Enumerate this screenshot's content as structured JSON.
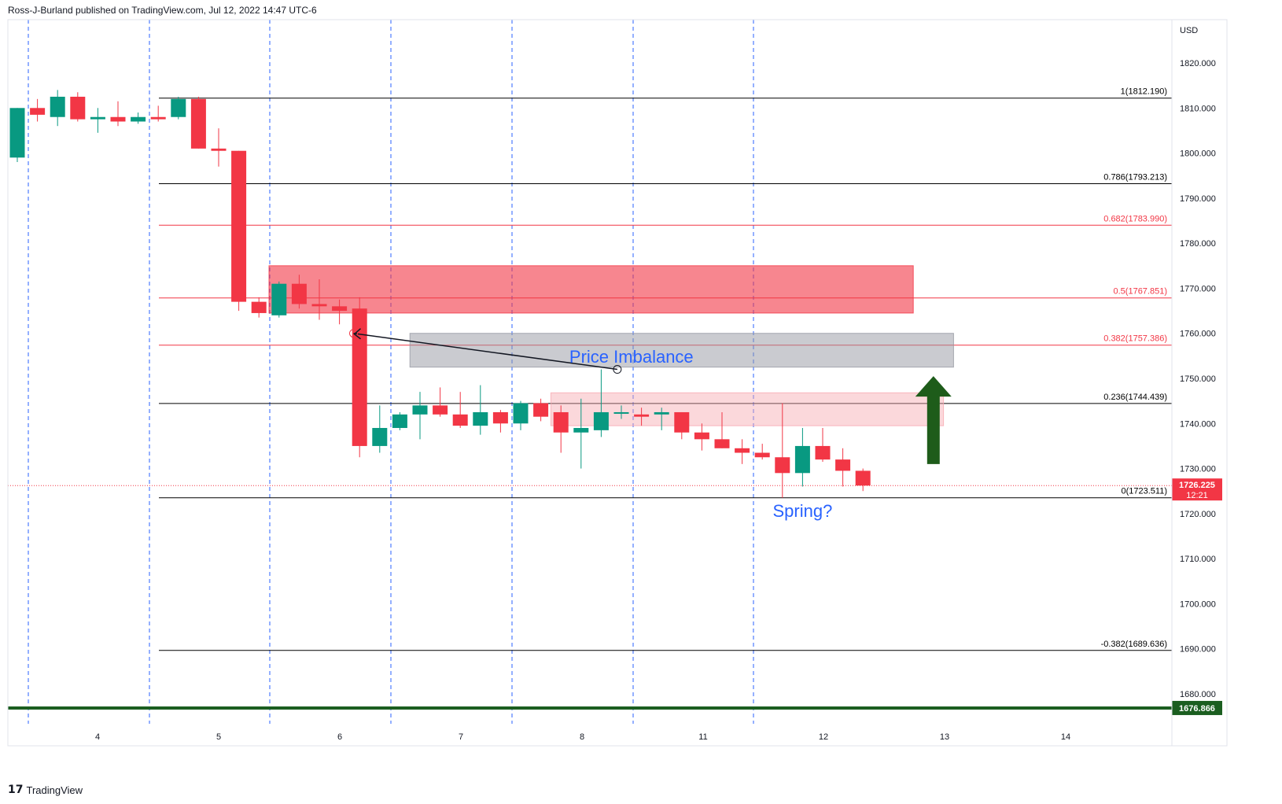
{
  "header": {
    "published": "Ross-J-Burland published on TradingView.com, Jul 12, 2022 14:47 UTC-6"
  },
  "footer": {
    "brand": "TradingView"
  },
  "colors": {
    "up": "#089981",
    "down": "#f23645",
    "grid": "#2962ff",
    "fib_black": "#000000",
    "fib_red": "#f23645",
    "support": "#1b5e20",
    "arrow": "#1e5c1a",
    "annotation_text": "#2962ff"
  },
  "chart_data": {
    "type": "candlestick",
    "title": "",
    "currency_label": "USD",
    "ylim": [
      1670,
      1830
    ],
    "y_ticks": [
      1680,
      1690,
      1700,
      1710,
      1720,
      1730,
      1740,
      1750,
      1760,
      1770,
      1780,
      1790,
      1800,
      1810,
      1820
    ],
    "x_ticks": [
      "4",
      "5",
      "6",
      "7",
      "8",
      "11",
      "12",
      "13",
      "14"
    ],
    "candles": [
      {
        "o": 1799.0,
        "h": 1810.0,
        "l": 1798.0,
        "c": 1810.0
      },
      {
        "o": 1810.0,
        "h": 1812.0,
        "l": 1807.0,
        "c": 1808.5
      },
      {
        "o": 1808.0,
        "h": 1814.0,
        "l": 1806.0,
        "c": 1812.5
      },
      {
        "o": 1812.5,
        "h": 1813.5,
        "l": 1807.0,
        "c": 1807.5
      },
      {
        "o": 1807.5,
        "h": 1810.0,
        "l": 1804.5,
        "c": 1808.0
      },
      {
        "o": 1808.0,
        "h": 1811.5,
        "l": 1806.0,
        "c": 1807.0
      },
      {
        "o": 1807.0,
        "h": 1809.0,
        "l": 1806.5,
        "c": 1808.0
      },
      {
        "o": 1808.0,
        "h": 1810.5,
        "l": 1807.0,
        "c": 1807.5
      },
      {
        "o": 1808.0,
        "h": 1812.5,
        "l": 1807.5,
        "c": 1812.0
      },
      {
        "o": 1812.0,
        "h": 1812.5,
        "l": 1801.0,
        "c": 1801.0
      },
      {
        "o": 1801.0,
        "h": 1805.5,
        "l": 1797.0,
        "c": 1800.5
      },
      {
        "o": 1800.5,
        "h": 1800.5,
        "l": 1765.0,
        "c": 1767.0
      },
      {
        "o": 1767.0,
        "h": 1768.0,
        "l": 1763.5,
        "c": 1764.5
      },
      {
        "o": 1764.0,
        "h": 1771.5,
        "l": 1763.5,
        "c": 1771.0
      },
      {
        "o": 1771.0,
        "h": 1773.0,
        "l": 1765.5,
        "c": 1766.5
      },
      {
        "o": 1766.5,
        "h": 1772.0,
        "l": 1763.0,
        "c": 1766.0
      },
      {
        "o": 1766.0,
        "h": 1767.5,
        "l": 1762.0,
        "c": 1765.0
      },
      {
        "o": 1765.5,
        "h": 1768.0,
        "l": 1732.5,
        "c": 1735.0
      },
      {
        "o": 1735.0,
        "h": 1744.0,
        "l": 1733.5,
        "c": 1739.0
      },
      {
        "o": 1739.0,
        "h": 1742.5,
        "l": 1738.5,
        "c": 1742.0
      },
      {
        "o": 1742.0,
        "h": 1747.0,
        "l": 1736.5,
        "c": 1744.0
      },
      {
        "o": 1744.0,
        "h": 1748.0,
        "l": 1741.5,
        "c": 1742.0
      },
      {
        "o": 1742.0,
        "h": 1747.0,
        "l": 1739.0,
        "c": 1739.5
      },
      {
        "o": 1739.5,
        "h": 1748.5,
        "l": 1737.5,
        "c": 1742.5
      },
      {
        "o": 1742.5,
        "h": 1743.0,
        "l": 1738.0,
        "c": 1740.0
      },
      {
        "o": 1740.0,
        "h": 1745.0,
        "l": 1738.5,
        "c": 1744.5
      },
      {
        "o": 1744.5,
        "h": 1745.5,
        "l": 1740.5,
        "c": 1741.5
      },
      {
        "o": 1742.5,
        "h": 1744.0,
        "l": 1733.5,
        "c": 1738.0
      },
      {
        "o": 1738.0,
        "h": 1745.5,
        "l": 1730.0,
        "c": 1739.0
      },
      {
        "o": 1738.5,
        "h": 1752.0,
        "l": 1737.0,
        "c": 1742.5
      },
      {
        "o": 1742.5,
        "h": 1744.0,
        "l": 1741.0,
        "c": 1742.5
      },
      {
        "o": 1742.0,
        "h": 1743.5,
        "l": 1739.5,
        "c": 1741.5
      },
      {
        "o": 1742.0,
        "h": 1743.5,
        "l": 1738.5,
        "c": 1742.5
      },
      {
        "o": 1742.5,
        "h": 1742.5,
        "l": 1736.5,
        "c": 1738.0
      },
      {
        "o": 1738.0,
        "h": 1740.0,
        "l": 1734.0,
        "c": 1736.5
      },
      {
        "o": 1736.5,
        "h": 1742.5,
        "l": 1734.5,
        "c": 1734.5
      },
      {
        "o": 1734.5,
        "h": 1736.5,
        "l": 1731.0,
        "c": 1733.5
      },
      {
        "o": 1733.5,
        "h": 1735.5,
        "l": 1732.0,
        "c": 1732.5
      },
      {
        "o": 1732.5,
        "h": 1744.5,
        "l": 1723.5,
        "c": 1729.0
      },
      {
        "o": 1729.0,
        "h": 1739.0,
        "l": 1726.0,
        "c": 1735.0
      },
      {
        "o": 1735.0,
        "h": 1739.0,
        "l": 1731.5,
        "c": 1732.0
      },
      {
        "o": 1732.0,
        "h": 1734.5,
        "l": 1726.0,
        "c": 1729.5
      },
      {
        "o": 1729.5,
        "h": 1730.0,
        "l": 1725.0,
        "c": 1726.225
      }
    ],
    "fib_levels": [
      {
        "ratio": "1",
        "value": 1812.19,
        "label": "1(1812.190)",
        "color": "black"
      },
      {
        "ratio": "0.786",
        "value": 1793.213,
        "label": "0.786(1793.213)",
        "color": "black"
      },
      {
        "ratio": "0.682",
        "value": 1783.99,
        "label": "0.682(1783.990)",
        "color": "red"
      },
      {
        "ratio": "0.5",
        "value": 1767.851,
        "label": "0.5(1767.851)",
        "color": "red"
      },
      {
        "ratio": "0.382",
        "value": 1757.386,
        "label": "0.382(1757.386)",
        "color": "red"
      },
      {
        "ratio": "0.236",
        "value": 1744.439,
        "label": "0.236(1744.439)",
        "color": "black"
      },
      {
        "ratio": "0",
        "value": 1723.511,
        "label": "0(1723.511)",
        "color": "black"
      },
      {
        "ratio": "-0.382",
        "value": 1689.636,
        "label": "-0.382(1689.636)",
        "color": "black"
      }
    ],
    "zones": [
      {
        "name": "supply-zone",
        "top": 1775.0,
        "bottom": 1764.5,
        "from_candle": 12.5,
        "to_candle": 44.5,
        "color": "#f23645",
        "opacity": 0.6
      },
      {
        "name": "price-imbalance-zone",
        "top": 1760.0,
        "bottom": 1752.5,
        "from_candle": 19.5,
        "to_candle": 46.5,
        "color": "#9598a1",
        "opacity": 0.5
      },
      {
        "name": "minor-supply-zone",
        "top": 1746.8,
        "bottom": 1739.5,
        "from_candle": 26.5,
        "to_candle": 46.0,
        "color": "#f7a8b0",
        "opacity": 0.45
      }
    ],
    "support_line": {
      "value": 1676.866,
      "label": "1676.866"
    },
    "current_price": {
      "value": 1726.225,
      "label": "1726.225",
      "countdown": "12:21"
    },
    "annotations": [
      {
        "text": "Price Imbalance",
        "at_candle": 30.5,
        "value": 1753.5
      },
      {
        "text": "Spring?",
        "at_candle": 39.0,
        "value": 1719.3
      }
    ],
    "trend_line": {
      "from_candle": 16.7,
      "from_value": 1760.0,
      "to_candle": 29.8,
      "to_value": 1752.0
    },
    "up_arrow": {
      "at_candle": 45.5,
      "from_value": 1731.0,
      "to_value": 1750.5
    }
  }
}
